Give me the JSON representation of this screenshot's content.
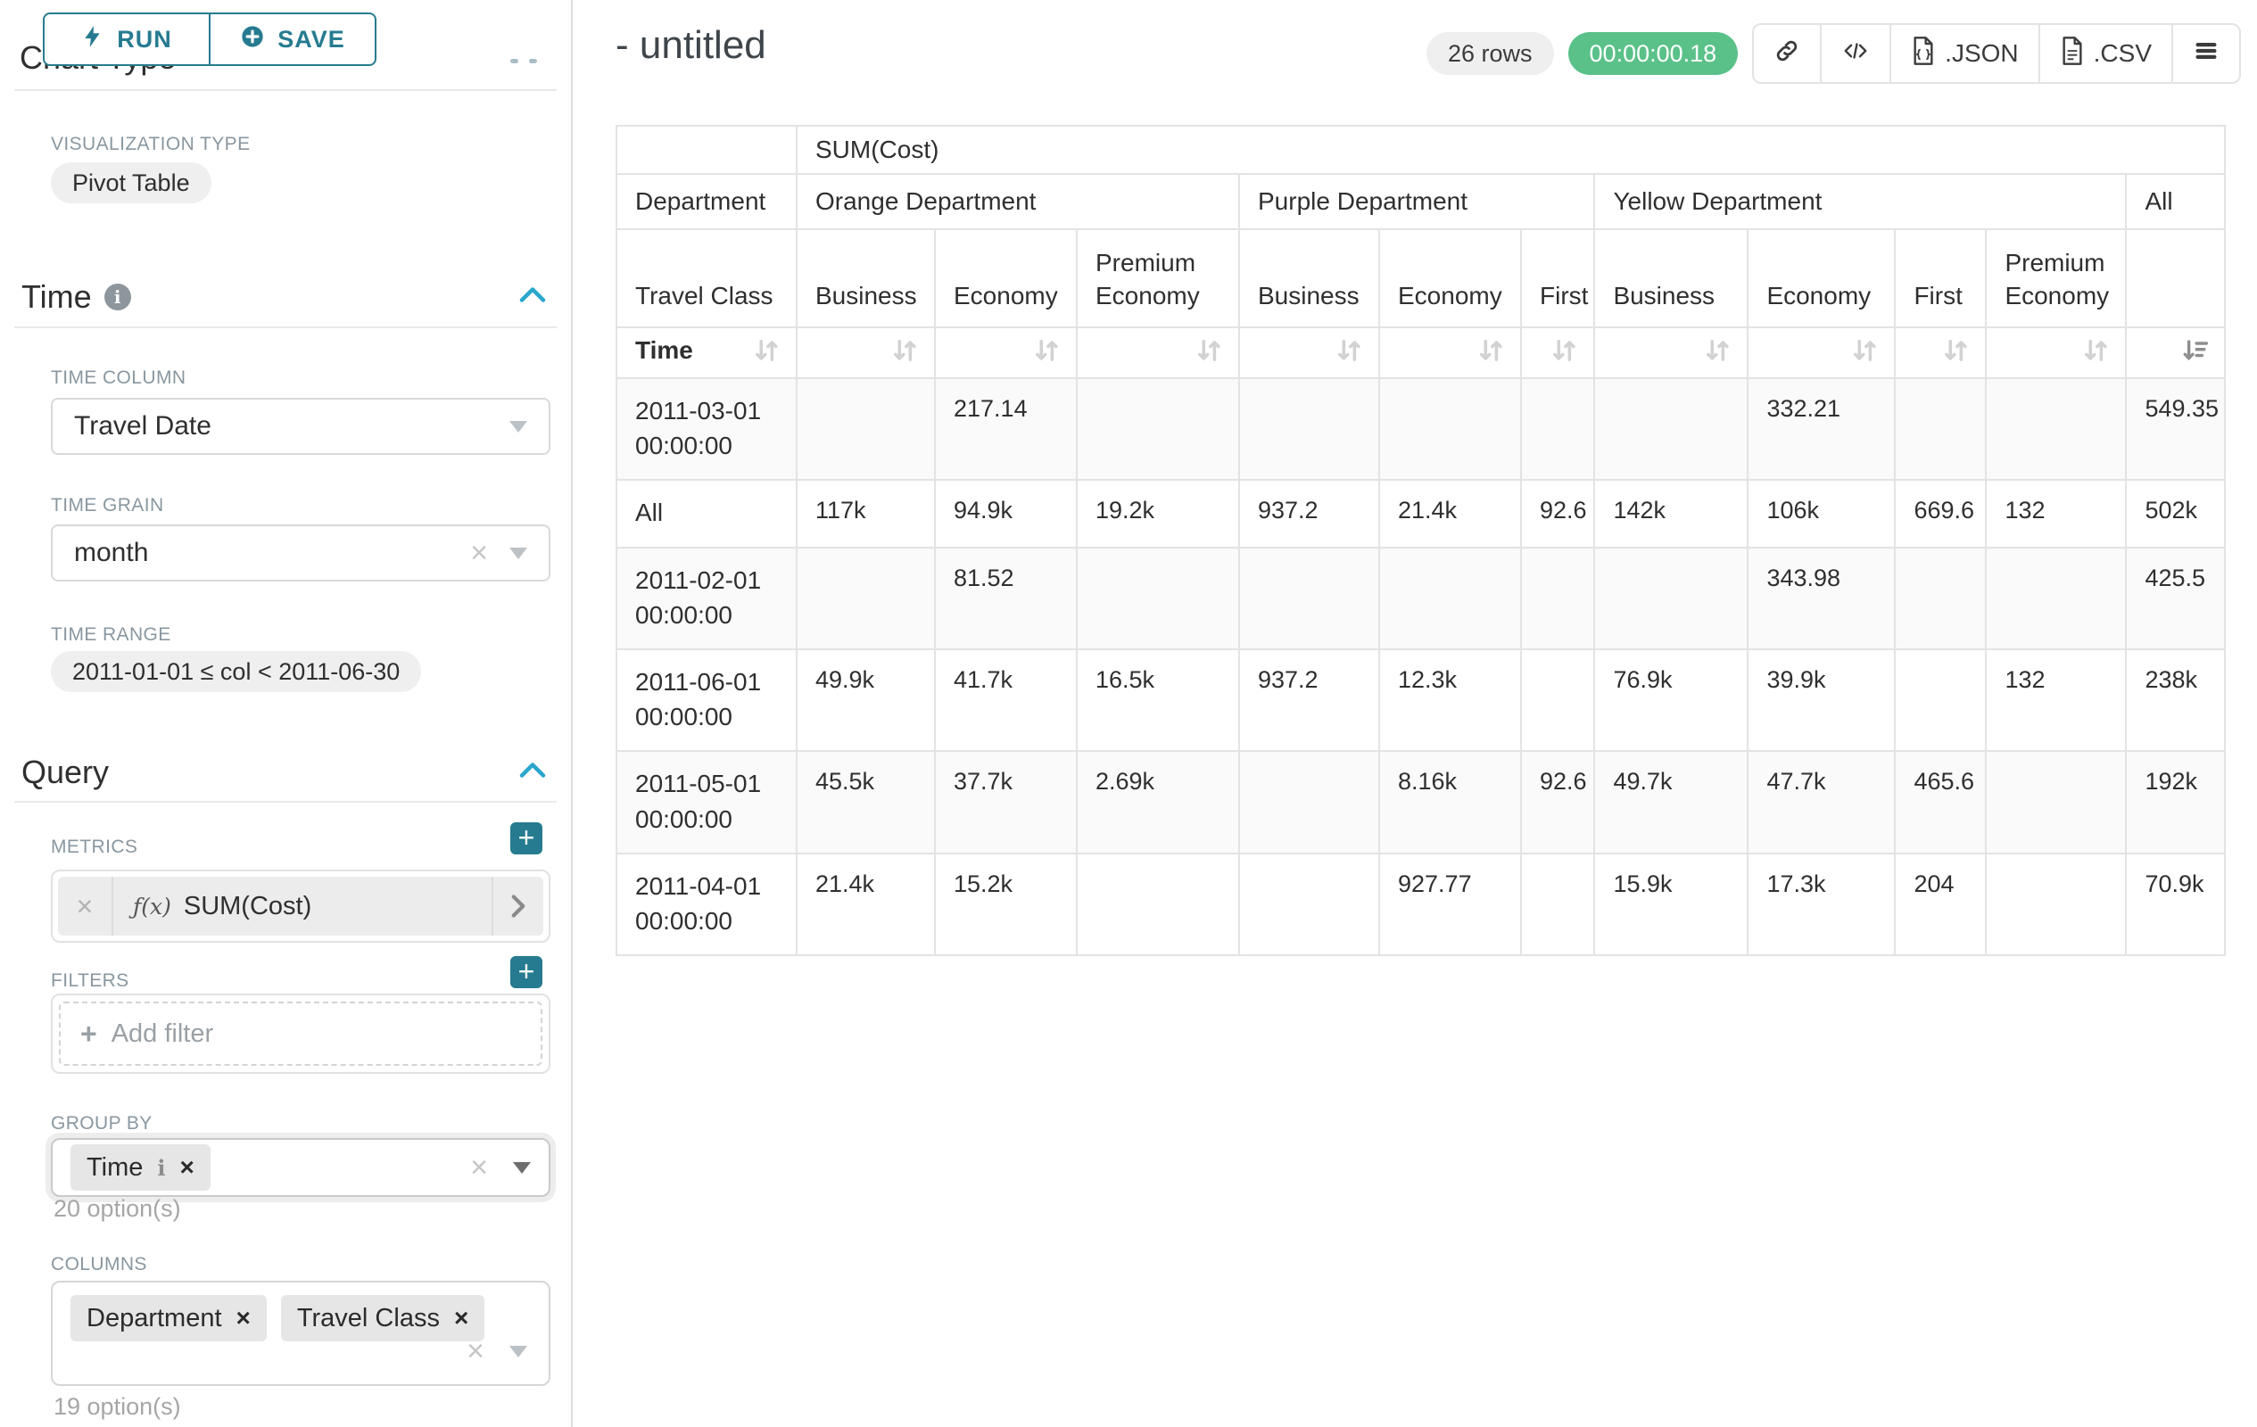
{
  "colors": {
    "accent_teal": "#267b90",
    "chevron_blue": "#2ba6cc",
    "timer_green": "#5ac189",
    "badge_gray_bg": "#efefef",
    "label_gray": "#8a97a0",
    "grid_gray": "#e3e3e3",
    "stripe_row": "#fafafa"
  },
  "icons": {
    "run-icon": "lightning-bolt",
    "save-icon": "plus-circle",
    "info-icon": "info-circle",
    "collapse-chevron-icon": "chevron-up",
    "caret-down-icon": "caret-down",
    "clear-icon": "x",
    "remove-tag-icon": "x",
    "metric-function-icon": "f(x)",
    "metric-expand-icon": "chevron-right",
    "add-plus-icon": "plus",
    "link-icon": "chain-link",
    "code-icon": "angle-brackets-slash",
    "json-file-icon": "document",
    "csv-file-icon": "document",
    "menu-icon": "hamburger",
    "sort-icon": "down-up-arrows",
    "sort-desc-icon": "arrow-down-with-bars"
  },
  "sidebar": {
    "run_button": "RUN",
    "save_button": "SAVE",
    "chart_type_heading": "Chart Type",
    "visualization_type_label": "VISUALIZATION TYPE",
    "visualization_type_value": "Pivot Table",
    "time": {
      "heading": "Time",
      "time_column_label": "TIME COLUMN",
      "time_column_value": "Travel Date",
      "time_grain_label": "TIME GRAIN",
      "time_grain_value": "month",
      "time_range_label": "TIME RANGE",
      "time_range_value": "2011-01-01 ≤ col < 2011-06-30"
    },
    "query": {
      "heading": "Query",
      "metrics_label": "METRICS",
      "metric_fx": "ƒ(x)",
      "metric_value": "SUM(Cost)",
      "filters_label": "FILTERS",
      "add_filter_label": "Add filter",
      "group_by_label": "GROUP BY",
      "group_by_tags": [
        "Time"
      ],
      "group_by_hint": "20 option(s)",
      "columns_label": "COLUMNS",
      "columns_tags": [
        "Department",
        "Travel Class"
      ],
      "columns_hint": "19 option(s)"
    }
  },
  "header": {
    "title": "- untitled",
    "rows_badge": "26 rows",
    "timer": "00:00:00.18",
    "export_json_label": ".JSON",
    "export_csv_label": ".CSV"
  },
  "pivot_table": {
    "metric_header": "SUM(Cost)",
    "corner": {
      "department": "Department",
      "travel_class": "Travel Class",
      "time": "Time"
    },
    "column_groups": [
      {
        "label": "Orange Department",
        "children": [
          "Business",
          "Economy",
          "Premium Economy"
        ]
      },
      {
        "label": "Purple Department",
        "children": [
          "Business",
          "Economy",
          "First"
        ]
      },
      {
        "label": "Yellow Department",
        "children": [
          "Business",
          "Economy",
          "First",
          "Premium Economy"
        ]
      },
      {
        "label": "All",
        "children": [
          ""
        ]
      }
    ],
    "rows": [
      {
        "label": "2011-03-01 00:00:00",
        "values": [
          "",
          "217.14",
          "",
          "",
          "",
          "",
          "",
          "332.21",
          "",
          "",
          "549.35"
        ]
      },
      {
        "label": "All",
        "values": [
          "117k",
          "94.9k",
          "19.2k",
          "937.2",
          "21.4k",
          "92.6",
          "142k",
          "106k",
          "669.6",
          "132",
          "502k"
        ]
      },
      {
        "label": "2011-02-01 00:00:00",
        "values": [
          "",
          "81.52",
          "",
          "",
          "",
          "",
          "",
          "343.98",
          "",
          "",
          "425.5"
        ]
      },
      {
        "label": "2011-06-01 00:00:00",
        "values": [
          "49.9k",
          "41.7k",
          "16.5k",
          "937.2",
          "12.3k",
          "",
          "76.9k",
          "39.9k",
          "",
          "132",
          "238k"
        ]
      },
      {
        "label": "2011-05-01 00:00:00",
        "values": [
          "45.5k",
          "37.7k",
          "2.69k",
          "",
          "8.16k",
          "92.6",
          "49.7k",
          "47.7k",
          "465.6",
          "",
          "192k"
        ]
      },
      {
        "label": "2011-04-01 00:00:00",
        "values": [
          "21.4k",
          "15.2k",
          "",
          "",
          "927.77",
          "",
          "15.9k",
          "17.3k",
          "204",
          "",
          "70.9k"
        ]
      }
    ],
    "sorted_column": "All",
    "sort_direction": "desc"
  }
}
